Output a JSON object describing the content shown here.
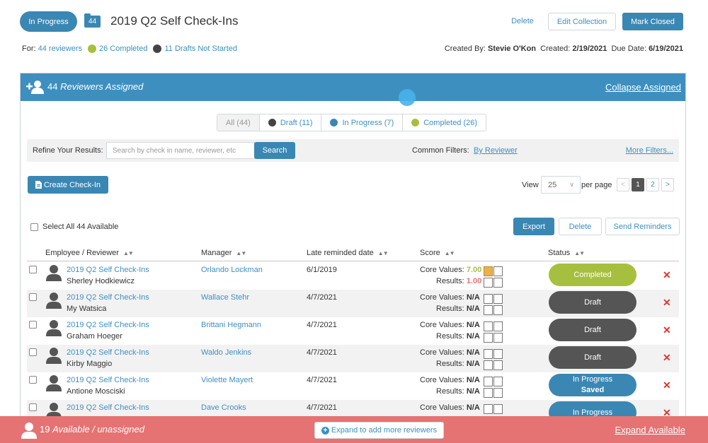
{
  "header": {
    "status": "In Progress",
    "count": "44",
    "title": "2019 Q2 Self Check-Ins",
    "delete_label": "Delete",
    "edit_label": "Edit Collection",
    "close_label": "Mark Closed",
    "for_label": "For:",
    "reviewers_link": "44 reviewers",
    "completed_link": "26 Completed",
    "drafts_link": "11 Drafts Not Started",
    "created_by_label": "Created By:",
    "created_by": "Stevie O'Kon",
    "created_label": "Created:",
    "created": "2/19/2021",
    "due_label": "Due Date:",
    "due": "6/19/2021"
  },
  "panel": {
    "count": "44",
    "title": "Reviewers Assigned",
    "collapse_label": "Collapse Assigned",
    "tabs": [
      {
        "label": "All (44)"
      },
      {
        "label": "Draft (11)"
      },
      {
        "label": "In Progress (7)"
      },
      {
        "label": "Completed (26)"
      }
    ],
    "refine_label": "Refine Your Results:",
    "search_placeholder": "Search by check in name, reviewer, etc",
    "search_label": "Search",
    "common_filters_label": "Common Filters:",
    "by_reviewer_label": "By Reviewer",
    "more_filters_label": "More Filters...",
    "create_label": "Create Check-In",
    "view_label": "View",
    "view_value": "25",
    "per_page_label": "per page",
    "pages": [
      "<",
      "1",
      "2",
      ">"
    ],
    "select_all_label": "Select All 44 Available",
    "export_label": "Export",
    "delete_label": "Delete",
    "reminders_label": "Send Reminders",
    "columns": [
      "Employee / Reviewer",
      "Manager",
      "Late reminded date",
      "Score",
      "Status"
    ],
    "score_labels": {
      "core": "Core Values:",
      "results": "Results:"
    },
    "rows": [
      {
        "collection": "2019 Q2 Self Check-Ins",
        "person": "Sherley Hodkiewicz",
        "manager": "Orlando Lockman",
        "reminded": "6/1/2019",
        "core": "7.00",
        "results": "1.00",
        "status": "Completed",
        "status_sub": ""
      },
      {
        "collection": "2019 Q2 Self Check-Ins",
        "person": "My Watsica",
        "manager": "Wallace Stehr",
        "reminded": "4/7/2021",
        "core": "N/A",
        "results": "N/A",
        "status": "Draft",
        "status_sub": ""
      },
      {
        "collection": "2019 Q2 Self Check-Ins",
        "person": "Graham Hoeger",
        "manager": "Brittani Hegmann",
        "reminded": "4/7/2021",
        "core": "N/A",
        "results": "N/A",
        "status": "Draft",
        "status_sub": ""
      },
      {
        "collection": "2019 Q2 Self Check-Ins",
        "person": "Kirby Maggio",
        "manager": "Waldo Jenkins",
        "reminded": "4/7/2021",
        "core": "N/A",
        "results": "N/A",
        "status": "Draft",
        "status_sub": ""
      },
      {
        "collection": "2019 Q2 Self Check-Ins",
        "person": "Antione Mosciski",
        "manager": "Violette Mayert",
        "reminded": "4/7/2021",
        "core": "N/A",
        "results": "N/A",
        "status": "In Progress",
        "status_sub": "Saved"
      },
      {
        "collection": "2019 Q2 Self Check-Ins",
        "person": "",
        "manager": "Dave Crooks",
        "reminded": "4/7/2021",
        "core": "N/A",
        "results": "",
        "status": "In Progress",
        "status_sub": ""
      }
    ]
  },
  "footer": {
    "count": "19",
    "title": "Available / unassigned",
    "expand_label": "Expand to add more reviewers",
    "expand_available_label": "Expand Available"
  },
  "colors": {
    "primary": "#3a87b4",
    "completed": "#a7bf3f",
    "draft": "#555555",
    "footer": "#e57373",
    "score_good": "#a7bf3f",
    "score_bad": "#e57373"
  }
}
